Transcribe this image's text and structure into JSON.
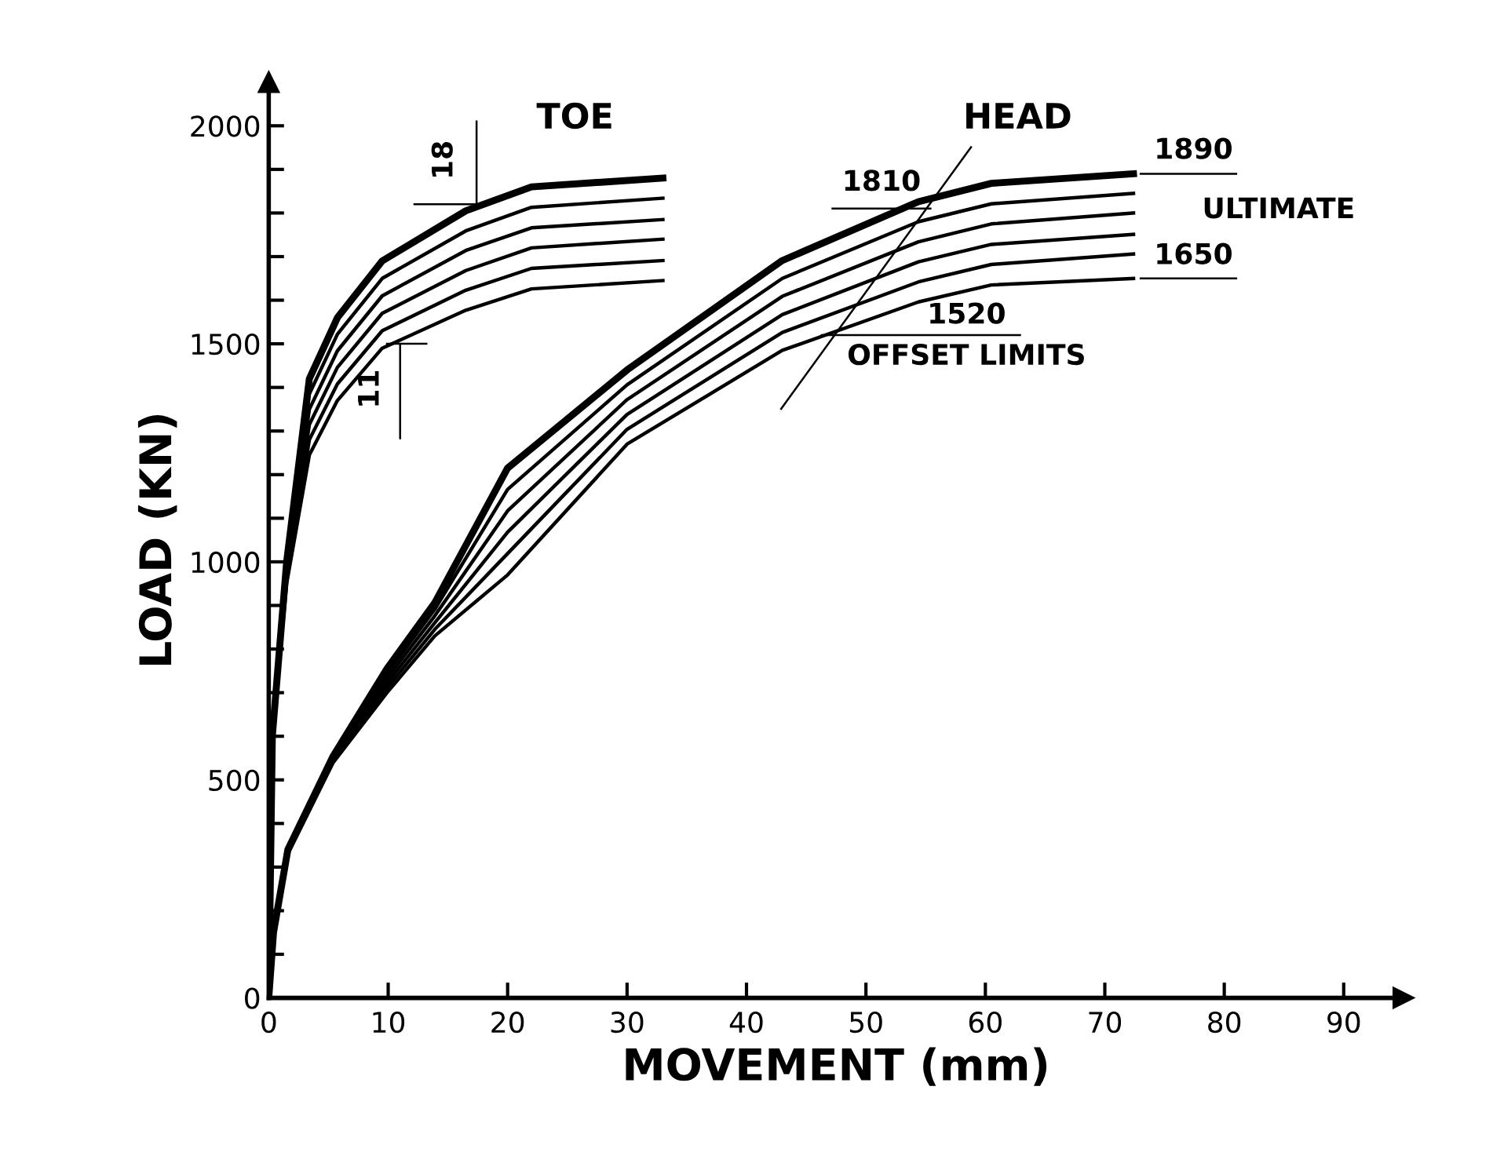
{
  "chart_data": {
    "type": "line",
    "xlabel": "MOVEMENT (mm)",
    "ylabel": "LOAD (KN)",
    "xlim": [
      0,
      95
    ],
    "ylim": [
      0,
      2100
    ],
    "xticks": [
      0,
      10,
      20,
      30,
      40,
      50,
      60,
      70,
      80,
      90
    ],
    "yticks": [
      0,
      {
        "value": 100,
        "label": null
      },
      {
        "value": 200,
        "label": null
      },
      {
        "value": 300,
        "label": null
      },
      {
        "value": 400,
        "label": null
      },
      500,
      {
        "value": 600,
        "label": null
      },
      {
        "value": 700,
        "label": null
      },
      {
        "value": 800,
        "label": null
      },
      {
        "value": 900,
        "label": null
      },
      1000,
      {
        "value": 1100,
        "label": null
      },
      {
        "value": 1200,
        "label": null
      },
      {
        "value": 1300,
        "label": null
      },
      {
        "value": 1400,
        "label": null
      },
      1500,
      {
        "value": 1600,
        "label": null
      },
      {
        "value": 1700,
        "label": null
      },
      {
        "value": 1800,
        "label": null
      },
      {
        "value": 1900,
        "label": null
      },
      2000
    ],
    "grid": false,
    "legend": false,
    "marker": "none",
    "line_style": "solid",
    "series": [
      {
        "color": "#000000",
        "x": [
          0,
          0.3,
          1.5,
          3.4,
          5.75,
          9.5,
          16.5,
          22,
          33
        ],
        "values": [
          0,
          600,
          1000,
          1420,
          1560,
          1690,
          1805,
          1860,
          1880
        ]
      },
      {
        "color": "#000000",
        "x": [
          0,
          0.3,
          1.5,
          3.4,
          5.75,
          9.5,
          16.5,
          22,
          33
        ],
        "values": [
          0,
          600,
          990,
          1385,
          1522,
          1650,
          1759,
          1813,
          1834
        ]
      },
      {
        "color": "#000000",
        "x": [
          0,
          0.3,
          1.5,
          3.4,
          5.75,
          9.5,
          16.5,
          22,
          33
        ],
        "values": [
          0,
          600,
          980,
          1350,
          1484,
          1610,
          1714,
          1766,
          1785
        ]
      },
      {
        "color": "#000000",
        "x": [
          0,
          0.3,
          1.5,
          3.4,
          5.75,
          9.5,
          16.5,
          22,
          33
        ],
        "values": [
          0,
          600,
          970,
          1315,
          1446,
          1570,
          1668,
          1720,
          1740
        ]
      },
      {
        "color": "#000000",
        "x": [
          0,
          0.3,
          1.5,
          3.4,
          5.75,
          9.5,
          16.5,
          22,
          33
        ],
        "values": [
          0,
          600,
          960,
          1280,
          1408,
          1530,
          1623,
          1673,
          1691
        ]
      },
      {
        "color": "#000000",
        "x": [
          0,
          0.3,
          1.5,
          3.4,
          5.75,
          9.5,
          16.5,
          22,
          33
        ],
        "values": [
          0,
          600,
          950,
          1245,
          1370,
          1490,
          1577,
          1626,
          1645
        ]
      },
      {
        "color": "#000000",
        "x": [
          0,
          0.4,
          1.6,
          5.4,
          9.9,
          13.9,
          20,
          30,
          43,
          54.4,
          60.5,
          72.4
        ],
        "values": [
          0,
          150,
          340,
          555,
          755,
          906,
          1215,
          1440,
          1691,
          1826,
          1868,
          1890
        ]
      },
      {
        "color": "#000000",
        "x": [
          0,
          0.4,
          1.6,
          5.4,
          9.9,
          13.9,
          20,
          30,
          43,
          54.4,
          60.5,
          72.4
        ],
        "values": [
          0,
          150,
          338,
          552,
          744,
          891,
          1166,
          1406,
          1650,
          1780,
          1821,
          1845
        ]
      },
      {
        "color": "#000000",
        "x": [
          0,
          0.4,
          1.6,
          5.4,
          9.9,
          13.9,
          20,
          30,
          43,
          54.4,
          60.5,
          72.4
        ],
        "values": [
          0,
          150,
          336,
          549,
          733,
          876,
          1117,
          1372,
          1609,
          1734,
          1775,
          1800
        ]
      },
      {
        "color": "#000000",
        "x": [
          0,
          0.4,
          1.6,
          5.4,
          9.9,
          13.9,
          20,
          30,
          43,
          54.4,
          60.5,
          72.4
        ],
        "values": [
          0,
          150,
          334,
          546,
          722,
          860,
          1068,
          1338,
          1567,
          1688,
          1728,
          1751
        ]
      },
      {
        "color": "#000000",
        "x": [
          0,
          0.4,
          1.6,
          5.4,
          9.9,
          13.9,
          20,
          30,
          43,
          54.4,
          60.5,
          72.4
        ],
        "values": [
          0,
          150,
          332,
          543,
          711,
          845,
          1019,
          1304,
          1526,
          1642,
          1682,
          1706
        ]
      },
      {
        "color": "#000000",
        "x": [
          0,
          0.4,
          1.6,
          5.4,
          9.9,
          13.9,
          20,
          30,
          43,
          54.4,
          60.5,
          72.4
        ],
        "values": [
          0,
          150,
          330,
          540,
          700,
          830,
          970,
          1270,
          1485,
          1596,
          1635,
          1650
        ]
      },
      {
        "color": "#000000",
        "x": [
          42.9,
          58.8
        ],
        "values": [
          1351,
          1951
        ]
      },
      {
        "color": "#000000",
        "x": [
          47.2,
          55.4
        ],
        "values": [
          1810,
          1810
        ]
      },
      {
        "color": "#000000",
        "x": [
          73,
          81
        ],
        "values": [
          1890,
          1890
        ]
      },
      {
        "color": "#000000",
        "x": [
          73,
          81
        ],
        "values": [
          1650,
          1650
        ]
      },
      {
        "color": "#000000",
        "x": [
          46.3,
          62.9
        ],
        "values": [
          1520,
          1520
        ]
      },
      {
        "color": "#000000",
        "x": [
          12.2,
          17.4,
          17.4
        ],
        "values": [
          1820,
          1820,
          2010
        ]
      },
      {
        "color": "#000000",
        "x": [
          9.9,
          11,
          11,
          11,
          13.2
        ],
        "values": [
          1500,
          1500,
          1283,
          1500,
          1500
        ]
      }
    ],
    "annotations": [
      "TOE",
      "HEAD",
      "18",
      "11",
      "1810",
      "1890",
      "ULTIMATE",
      "1650",
      "1520",
      "OFFSET LIMITS"
    ]
  }
}
